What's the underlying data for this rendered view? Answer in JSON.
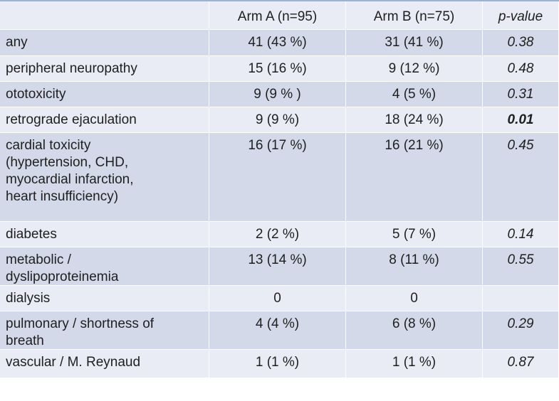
{
  "table": {
    "headers": [
      "",
      "Arm A (n=95)",
      "Arm B (n=75)",
      "p-value"
    ],
    "rows": [
      {
        "label": "any",
        "arm_a": "41 (43 %)",
        "arm_b": "31 (41 %)",
        "p_value": "0.38",
        "significant": false
      },
      {
        "label": "peripheral neuropathy",
        "arm_a": "15 (16 %)",
        "arm_b": "9 (12 %)",
        "p_value": "0.48",
        "significant": false
      },
      {
        "label": "ototoxicity",
        "arm_a": "9 (9 % )",
        "arm_b": "4 (5 %)",
        "p_value": "0.31",
        "significant": false
      },
      {
        "label": "retrograde ejaculation",
        "arm_a": "9 (9 %)",
        "arm_b": "18 (24 %)",
        "p_value": "0.01",
        "significant": true
      },
      {
        "label": "cardial toxicity\n(hypertension, CHD,\nmyocardial infarction,\nheart insufficiency)",
        "arm_a": "16 (17 %)",
        "arm_b": "16 (21 %)",
        "p_value": "0.45",
        "significant": false
      },
      {
        "label": "diabetes",
        "arm_a": "2 (2 %)",
        "arm_b": "5 (7 %)",
        "p_value": "0.14",
        "significant": false
      },
      {
        "label": "metabolic /\ndyslipoproteinemia",
        "arm_a": "13 (14 %)",
        "arm_b": "8 (11 %)",
        "p_value": "0.55",
        "significant": false
      },
      {
        "label": "dialysis",
        "arm_a": "0",
        "arm_b": "0",
        "p_value": "",
        "significant": false
      },
      {
        "label": "pulmonary / shortness of\nbreath",
        "arm_a": "4 (4 %)",
        "arm_b": "6 (8 %)",
        "p_value": "0.29",
        "significant": false
      },
      {
        "label": "vascular / M. Reynaud",
        "arm_a": "1 (1 %)",
        "arm_b": "1 (1 %)",
        "p_value": "0.87",
        "significant": false
      }
    ]
  },
  "colors": {
    "row_dark": "#d3d9e8",
    "row_light": "#e9ecf4",
    "top_border": "#9fb0d0"
  }
}
